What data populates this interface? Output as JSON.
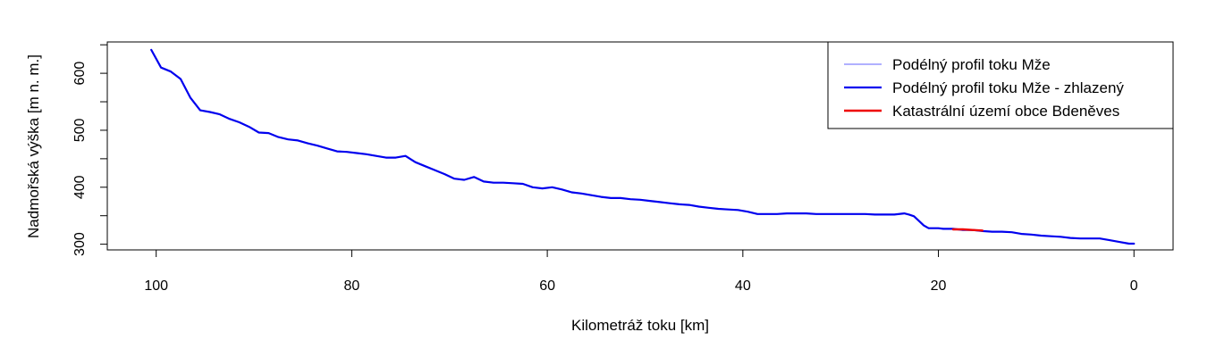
{
  "chart_data": {
    "type": "line",
    "xlabel": "Kilometráž toku [km]",
    "ylabel": "Nadmořská výška [m n. m.]",
    "xlim": [
      105,
      -4
    ],
    "ylim": [
      290,
      655
    ],
    "x_ticks": [
      100,
      80,
      60,
      40,
      20,
      0
    ],
    "y_ticks": [
      300,
      400,
      500,
      600
    ],
    "y_minor_ticks": [
      350,
      450,
      550,
      650
    ],
    "legend_position": "top-right",
    "series": [
      {
        "name": "Podélný profil toku Mže",
        "color": "#8080ff",
        "x": [
          100.5,
          99.5,
          98.5,
          97.5,
          96.5,
          95.5,
          94.5,
          93.5,
          92.5,
          91.5,
          90.5,
          89.5,
          88.5,
          87.5,
          86.5,
          85.5,
          84.5,
          83.5,
          82.5,
          81.5,
          80.5,
          79.5,
          78.5,
          77.5,
          76.5,
          75.5,
          74.5,
          73.5,
          72.5,
          71.5,
          70.5,
          69.5,
          68.5,
          67.5,
          66.5,
          65.5,
          64.5,
          63.5,
          62.5,
          61.5,
          60.5,
          59.5,
          58.5,
          57.5,
          56.5,
          55.5,
          54.5,
          53.5,
          52.5,
          51.5,
          50.5,
          49.5,
          48.5,
          47.5,
          46.5,
          45.5,
          44.5,
          43.5,
          42.5,
          41.5,
          40.5,
          39.5,
          38.5,
          37.5,
          36.5,
          35.5,
          34.5,
          33.5,
          32.5,
          31.5,
          30.5,
          29.5,
          28.5,
          27.5,
          26.5,
          25.5,
          24.5,
          23.5,
          23,
          22.5,
          22,
          21.5,
          21,
          20.5,
          20,
          19.5,
          18.5,
          17.5,
          16.5,
          15.5,
          14.5,
          13.5,
          12.5,
          11.5,
          10.5,
          9.5,
          8.5,
          7.5,
          6.5,
          5.5,
          4.5,
          3.5,
          2.5,
          1.5,
          0.5,
          0
        ],
        "values": [
          641,
          610,
          603,
          590,
          557,
          535,
          532,
          528,
          520,
          514,
          506,
          496,
          495,
          488,
          484,
          482,
          477,
          473,
          468,
          463,
          462,
          460,
          458,
          455,
          452,
          452,
          455,
          444,
          437,
          430,
          423,
          415,
          413,
          418,
          410,
          408,
          408,
          407,
          406,
          400,
          398,
          400,
          396,
          391,
          389,
          386,
          383,
          381,
          381,
          379,
          378,
          376,
          374,
          372,
          370,
          369,
          366,
          364,
          362,
          361,
          360,
          357,
          353,
          353,
          353,
          354,
          354,
          354,
          353,
          353,
          353,
          353,
          353,
          353,
          352,
          352,
          352,
          354,
          352,
          349,
          341,
          333,
          328,
          328,
          328,
          327,
          327,
          325,
          325,
          323,
          322,
          322,
          321,
          318,
          317,
          315,
          314,
          313,
          311,
          310,
          310,
          310,
          307,
          304,
          301,
          301
        ]
      },
      {
        "name": "Podélný profil toku Mže - zhlazený",
        "color": "#0000ee",
        "x": [
          100.5,
          99.5,
          98.5,
          97.5,
          96.5,
          95.5,
          94.5,
          93.5,
          92.5,
          91.5,
          90.5,
          89.5,
          88.5,
          87.5,
          86.5,
          85.5,
          84.5,
          83.5,
          82.5,
          81.5,
          80.5,
          79.5,
          78.5,
          77.5,
          76.5,
          75.5,
          74.5,
          73.5,
          72.5,
          71.5,
          70.5,
          69.5,
          68.5,
          67.5,
          66.5,
          65.5,
          64.5,
          63.5,
          62.5,
          61.5,
          60.5,
          59.5,
          58.5,
          57.5,
          56.5,
          55.5,
          54.5,
          53.5,
          52.5,
          51.5,
          50.5,
          49.5,
          48.5,
          47.5,
          46.5,
          45.5,
          44.5,
          43.5,
          42.5,
          41.5,
          40.5,
          39.5,
          38.5,
          37.5,
          36.5,
          35.5,
          34.5,
          33.5,
          32.5,
          31.5,
          30.5,
          29.5,
          28.5,
          27.5,
          26.5,
          25.5,
          24.5,
          23.5,
          23,
          22.5,
          22,
          21.5,
          21,
          20.5,
          20,
          19.5,
          18.5,
          17.5,
          16.5,
          15.5,
          14.5,
          13.5,
          12.5,
          11.5,
          10.5,
          9.5,
          8.5,
          7.5,
          6.5,
          5.5,
          4.5,
          3.5,
          2.5,
          1.5,
          0.5,
          0
        ],
        "values": [
          641,
          610,
          603,
          590,
          557,
          535,
          532,
          528,
          520,
          514,
          506,
          496,
          495,
          488,
          484,
          482,
          477,
          473,
          468,
          463,
          462,
          460,
          458,
          455,
          452,
          452,
          455,
          444,
          437,
          430,
          423,
          415,
          413,
          418,
          410,
          408,
          408,
          407,
          406,
          400,
          398,
          400,
          396,
          391,
          389,
          386,
          383,
          381,
          381,
          379,
          378,
          376,
          374,
          372,
          370,
          369,
          366,
          364,
          362,
          361,
          360,
          357,
          353,
          353,
          353,
          354,
          354,
          354,
          353,
          353,
          353,
          353,
          353,
          353,
          352,
          352,
          352,
          354,
          352,
          349,
          341,
          333,
          328,
          328,
          328,
          327,
          327,
          325,
          325,
          323,
          322,
          322,
          321,
          318,
          317,
          315,
          314,
          313,
          311,
          310,
          310,
          310,
          307,
          304,
          301,
          301
        ]
      },
      {
        "name": "Katastrální území obce Bdeněves",
        "color": "#ee0000",
        "x": [
          18.5,
          17.5,
          16.5,
          15.5
        ],
        "values": [
          326,
          326,
          325,
          324
        ]
      }
    ]
  }
}
